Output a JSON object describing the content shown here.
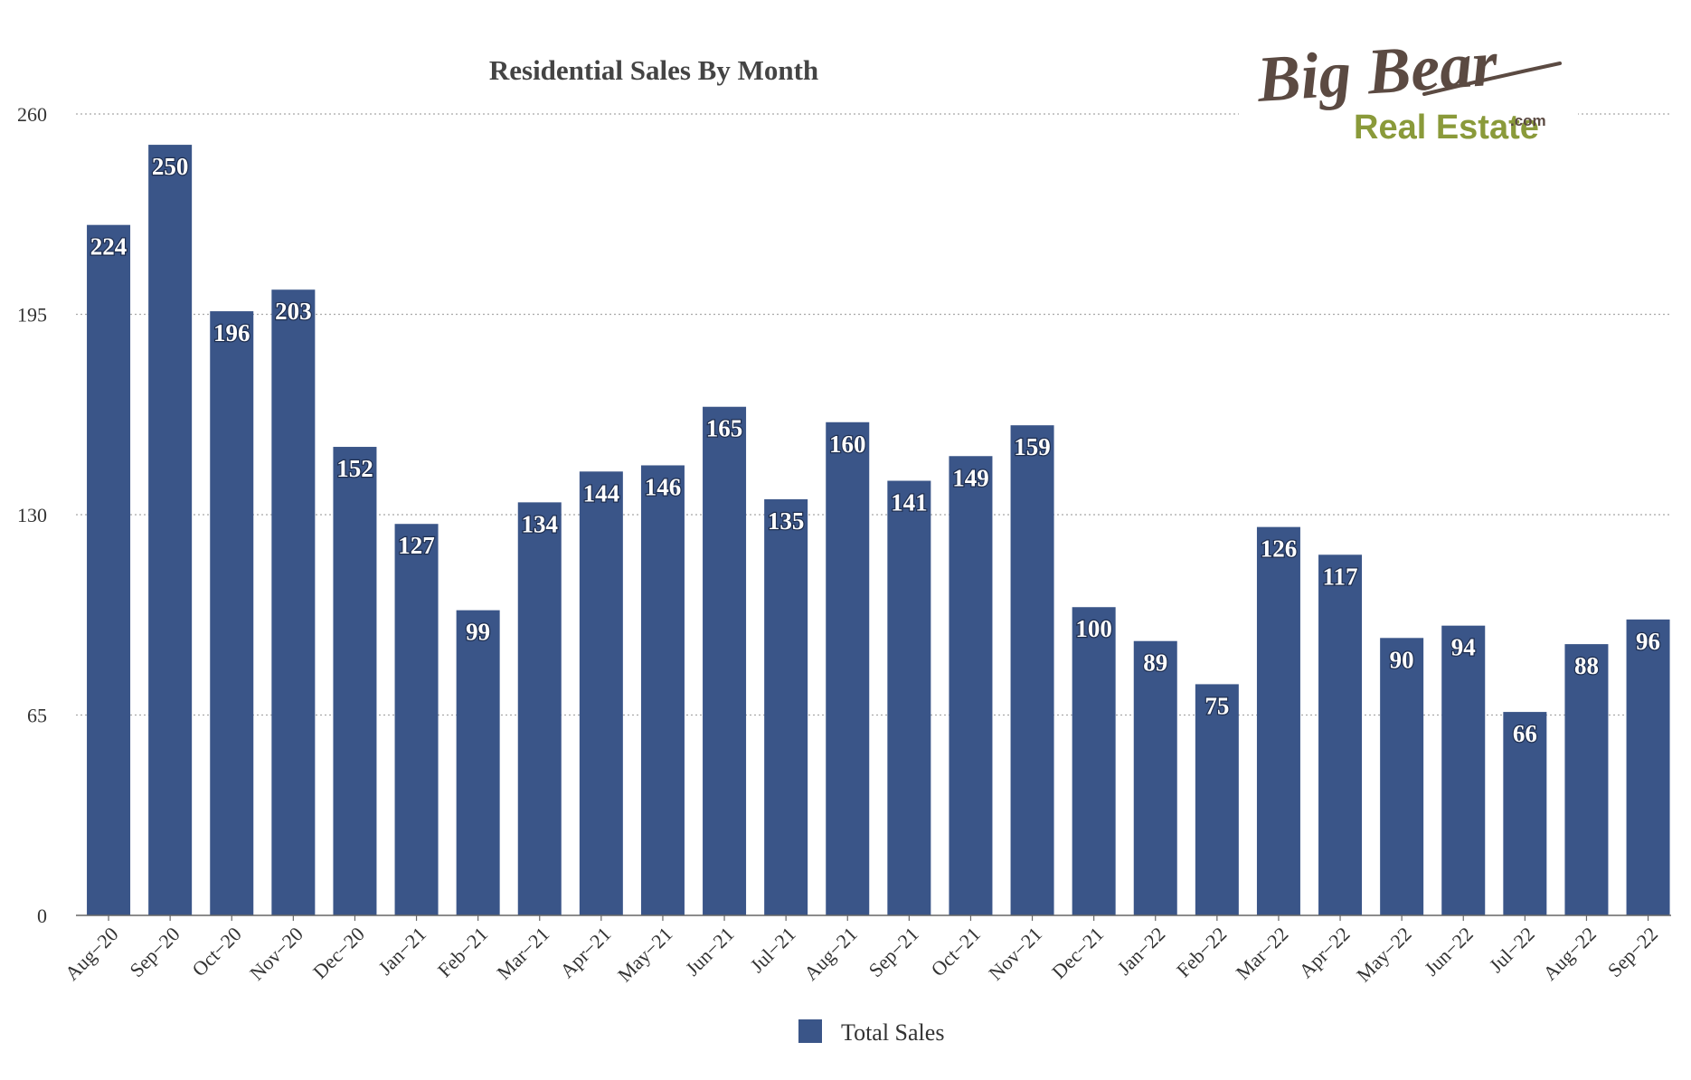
{
  "logo": {
    "line1": "Big Bear",
    "line2": "Real Estate",
    "suffix": ".com"
  },
  "colors": {
    "bar": "#3a5588",
    "grid": "#a8a8a8",
    "axis": "#666666",
    "logo_brown": "#5b4a42",
    "logo_green": "#8a9a3a"
  },
  "chart_data": {
    "type": "bar",
    "title": "Residential Sales By Month",
    "xlabel": "",
    "ylabel": "",
    "categories": [
      "Aug−20",
      "Sep−20",
      "Oct−20",
      "Nov−20",
      "Dec−20",
      "Jan−21",
      "Feb−21",
      "Mar−21",
      "Apr−21",
      "May−21",
      "Jun−21",
      "Jul−21",
      "Aug−21",
      "Sep−21",
      "Oct−21",
      "Nov−21",
      "Dec−21",
      "Jan−22",
      "Feb−22",
      "Mar−22",
      "Apr−22",
      "May−22",
      "Jun−22",
      "Jul−22",
      "Aug−22",
      "Sep−22"
    ],
    "series": [
      {
        "name": "Total Sales",
        "color": "#3a5588",
        "values": [
          224,
          250,
          196,
          203,
          152,
          127,
          99,
          134,
          144,
          146,
          165,
          135,
          160,
          141,
          149,
          159,
          100,
          89,
          75,
          126,
          117,
          90,
          94,
          66,
          88,
          96
        ]
      }
    ],
    "ylim": [
      0,
      260
    ],
    "yticks": [
      0,
      65,
      130,
      195,
      260
    ],
    "grid": true,
    "grid_style": "dotted-horizontal",
    "legend": "bottom-center",
    "data_labels": "inside-top"
  }
}
